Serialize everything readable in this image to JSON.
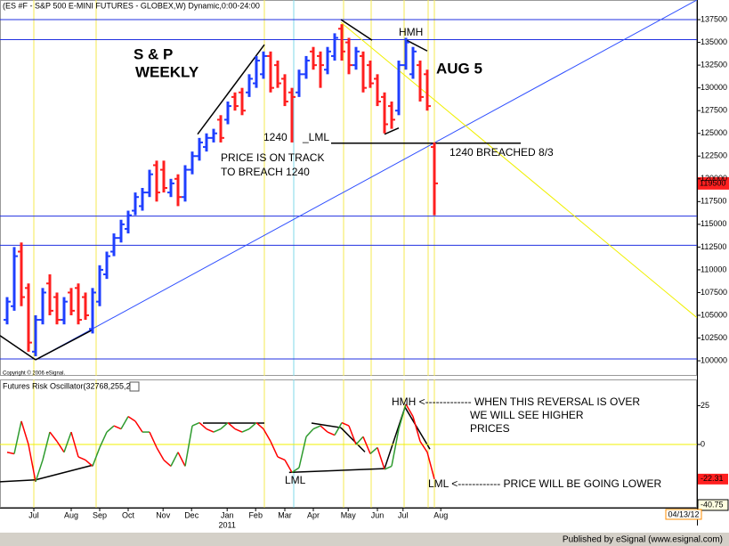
{
  "chart_data": [
    {
      "type": "ohlc",
      "title": "(ES #F - S&P 500 E-MINI FUTURES - GLOBEX,W) Dynamic,0:00-24:00",
      "copyright": "Copyright © 2006 eSignal.",
      "open": [
        104500,
        106000,
        112000,
        108000,
        101000,
        104500,
        108500,
        107000,
        104500,
        107500,
        108000,
        107000,
        103500,
        106500,
        109500,
        112000,
        113500,
        114500,
        116500,
        117000,
        118500,
        121500,
        121000,
        118500,
        120000,
        118000,
        121000,
        122500,
        123500,
        124500,
        126500,
        126500,
        129000,
        129500,
        129500,
        130500,
        131500,
        133500,
        132500,
        131000,
        129500,
        129500,
        131500,
        134000,
        133500,
        132000,
        133500,
        136500,
        135000,
        132500,
        133500,
        132500,
        131000,
        129000,
        128000,
        127500,
        132500,
        131500,
        132500,
        131500,
        123500
      ],
      "high": [
        107000,
        112500,
        113000,
        108500,
        105000,
        108000,
        109500,
        107500,
        107000,
        108000,
        108500,
        107500,
        108000,
        110500,
        112000,
        114000,
        115500,
        116500,
        118500,
        119000,
        121000,
        122000,
        122000,
        120000,
        120500,
        121500,
        123000,
        124500,
        125000,
        125500,
        127000,
        128500,
        129500,
        130000,
        131500,
        133500,
        134000,
        134000,
        133000,
        131500,
        130000,
        132000,
        133500,
        134500,
        134000,
        134500,
        136000,
        137000,
        135500,
        134500,
        134000,
        133000,
        131500,
        129500,
        128500,
        133000,
        135500,
        134500,
        133000,
        132000,
        124000
      ],
      "low": [
        104000,
        105500,
        106000,
        101000,
        100500,
        104000,
        105000,
        104000,
        104000,
        105000,
        104000,
        104500,
        103000,
        106000,
        109000,
        111500,
        113000,
        114000,
        116000,
        116500,
        118000,
        117500,
        118500,
        118000,
        117000,
        117500,
        120500,
        122000,
        123000,
        124000,
        124000,
        126000,
        127500,
        127000,
        129000,
        130000,
        131000,
        129500,
        130000,
        128000,
        124000,
        129000,
        131000,
        132000,
        130000,
        131500,
        133000,
        133000,
        131500,
        132000,
        129500,
        130000,
        128000,
        125000,
        125500,
        127000,
        132000,
        131000,
        128500,
        127500,
        116000
      ],
      "close": [
        106500,
        111500,
        107000,
        102000,
        104500,
        107500,
        105500,
        104500,
        106500,
        105500,
        104500,
        105000,
        107500,
        110000,
        111500,
        113500,
        115000,
        116000,
        118000,
        118500,
        120500,
        118500,
        119000,
        119500,
        118000,
        121000,
        122500,
        124000,
        124500,
        125000,
        124500,
        128000,
        128000,
        127500,
        131000,
        133000,
        133500,
        130000,
        130500,
        128500,
        129000,
        131500,
        133000,
        132500,
        132500,
        134000,
        135500,
        134000,
        132500,
        134000,
        130000,
        130500,
        128500,
        126000,
        126500,
        132500,
        135000,
        134000,
        129000,
        128000,
        119500
      ],
      "up_color": "#1f3fff",
      "down_color": "#ff1f1f",
      "xlim": [
        -1,
        96.875
      ],
      "ylim": [
        98340,
        139660
      ],
      "yticks": [
        137500,
        135000,
        132500,
        130000,
        127500,
        125000,
        122500,
        120000,
        117500,
        115000,
        112500,
        110000,
        107500,
        105000,
        102500,
        100000
      ],
      "hlines": [
        137500,
        135300,
        115900,
        112700,
        100200
      ],
      "hline_color": "#2030e0",
      "vlines": [
        {
          "x": 3.75,
          "color": "#f5e850"
        },
        {
          "x": 12.5,
          "color": "#f5e850"
        },
        {
          "x": 36.125,
          "color": "#f5e850"
        },
        {
          "x": 40.25,
          "color": "#7fd8e8"
        },
        {
          "x": 47.25,
          "color": "#f5e850"
        },
        {
          "x": 51.125,
          "color": "#f5e850"
        },
        {
          "x": 55.75,
          "color": "#f5e850"
        },
        {
          "x": 59.125,
          "color": "#f5e850"
        },
        {
          "x": 60,
          "color": "#f5e850"
        }
      ],
      "trendlines": [
        {
          "points": [
            [
              4,
              100108
            ],
            [
              96.875,
              139665
            ]
          ],
          "color": "#3050ff"
        },
        {
          "points": [
            [
              46.875,
              137205
            ],
            [
              96.875,
              104733
            ]
          ],
          "color": "#f0f000"
        },
        {
          "points": [
            [
              -1,
              102765
            ],
            [
              4,
              100108
            ]
          ],
          "color": "#000000"
        },
        {
          "points": [
            [
              4,
              100108
            ],
            [
              12.125,
              103454
            ]
          ],
          "color": "#000000"
        },
        {
          "points": [
            [
              26.75,
              124905
            ],
            [
              36.125,
              134745
            ]
          ],
          "color": "#000000"
        },
        {
          "points": [
            [
              46.875,
              137500
            ],
            [
              51.25,
              135237
            ]
          ],
          "color": "#000000"
        },
        {
          "points": [
            [
              45.5,
              123921
            ],
            [
              72.125,
              123921
            ]
          ],
          "color": "#000000"
        },
        {
          "points": [
            [
              53,
              124905
            ],
            [
              55,
              125594
            ]
          ],
          "color": "#000000"
        },
        {
          "points": [
            [
              55.875,
              135335
            ],
            [
              59,
              134056
            ]
          ],
          "color": "#000000"
        }
      ],
      "annotations": [
        "S & P",
        "WEEKLY",
        "PRICE IS ON TRACK",
        "TO BREACH 1240",
        "1240",
        "_LML",
        "HMH",
        "AUG 5",
        "1240 BREACHED 8/3"
      ]
    },
    {
      "type": "line",
      "title": "Futures Risk Oscillator(32768,255,2)",
      "values": [
        -5,
        -6,
        15,
        0,
        -24,
        -10,
        8,
        2,
        -5,
        8,
        -8,
        -10,
        -14,
        -2,
        8,
        12,
        10,
        18,
        15,
        8,
        8,
        -2,
        -10,
        -14,
        -5,
        -14,
        12,
        14,
        10,
        8,
        10,
        14,
        10,
        8,
        10,
        14,
        10,
        2,
        -8,
        -10,
        -18,
        -15,
        5,
        10,
        12,
        8,
        6,
        14,
        12,
        0,
        5,
        -6,
        -2,
        -16,
        -14,
        10,
        26,
        18,
        2,
        -5,
        -22.31
      ],
      "up_color": "#2e9b2e",
      "down_color": "#ff0000",
      "zero_line_color": "#f0f000",
      "xlim": [
        -1,
        96.875
      ],
      "ylim": [
        -40.75,
        41.9
      ],
      "yticks": [
        25,
        0,
        -40.75
      ],
      "xticks": [
        {
          "value": 3.75,
          "label": "Jul"
        },
        {
          "value": 9,
          "label": "Aug"
        },
        {
          "value": 13,
          "label": "Sep"
        },
        {
          "value": 17,
          "label": "Oct"
        },
        {
          "value": 21.9,
          "label": "Nov"
        },
        {
          "value": 25.9,
          "label": "Dec"
        },
        {
          "value": 30.9,
          "label": "Jan"
        },
        {
          "value": 34.9,
          "label": "Feb"
        },
        {
          "value": 39,
          "label": "Mar"
        },
        {
          "value": 43,
          "label": "Apr"
        },
        {
          "value": 47.9,
          "label": "May"
        },
        {
          "value": 52,
          "label": "Jun"
        },
        {
          "value": 55.6,
          "label": "Jul"
        },
        {
          "value": 60.9,
          "label": "Aug"
        }
      ],
      "year_label": "2011",
      "trendlines": [
        {
          "points": [
            [
              -1,
              -24
            ],
            [
              4,
              -22.8
            ]
          ],
          "color": "#000000"
        },
        {
          "points": [
            [
              4,
              -22.8
            ],
            [
              12.125,
              -13.2
            ]
          ],
          "color": "#000000"
        },
        {
          "points": [
            [
              27.5,
              13.8
            ],
            [
              36.125,
              13.8
            ]
          ],
          "color": "#000000"
        },
        {
          "points": [
            [
              39.6,
              -18
            ],
            [
              53,
              -15.6
            ]
          ],
          "color": "#000000"
        },
        {
          "points": [
            [
              53,
              -15.6
            ],
            [
              55.875,
              24
            ]
          ],
          "color": "#000000"
        },
        {
          "points": [
            [
              42.75,
              13.8
            ],
            [
              46.875,
              10.8
            ]
          ],
          "color": "#000000"
        },
        {
          "points": [
            [
              46.875,
              10.8
            ],
            [
              50.25,
              -4.8
            ]
          ],
          "color": "#000000"
        },
        {
          "points": [
            [
              55.875,
              24
            ],
            [
              59.375,
              -3
            ]
          ],
          "color": "#000000"
        }
      ],
      "annotations": [
        "HMH <------------- WHEN THIS REVERSAL IS OVER",
        "WE WILL SEE HIGHER",
        "PRICES",
        "LML",
        "LML  <------------ PRICE WILL BE GOING LOWER"
      ],
      "date_label": "04/13/12"
    }
  ],
  "footer": "Published by eSignal (www.esignal.com)"
}
